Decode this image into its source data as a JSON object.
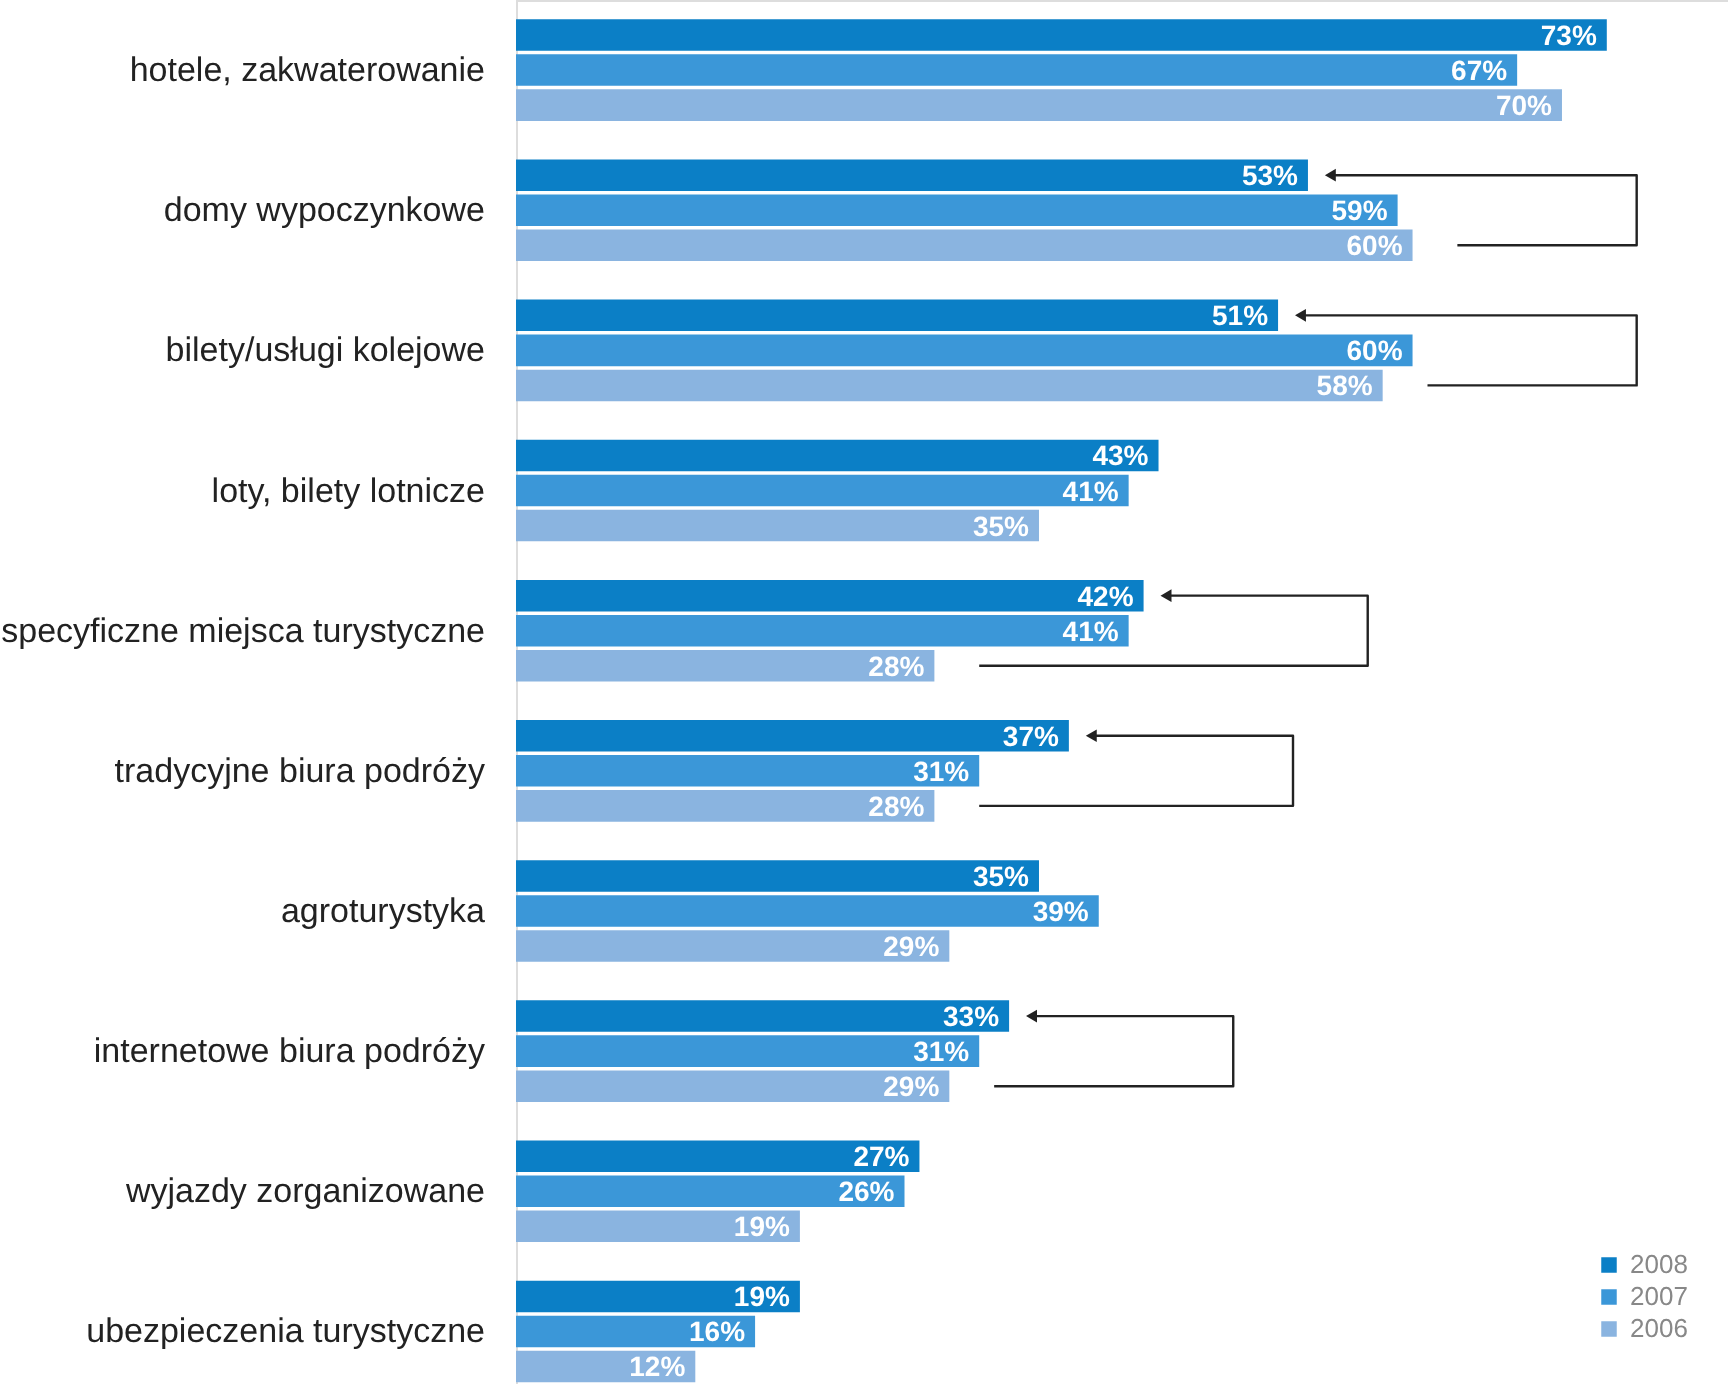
{
  "chart_data": {
    "type": "bar",
    "orientation": "horizontal",
    "categories": [
      "hotele, zakwaterowanie",
      "domy wypoczynkowe",
      "bilety/usługi kolejowe",
      "loty, bilety lotnicze",
      "specyficzne miejsca turystyczne",
      "tradycyjne biura podróży",
      "agroturystyka",
      "internetowe biura podróży",
      "wyjazdy zorganizowane",
      "ubezpieczenia turystyczne"
    ],
    "series": [
      {
        "name": "2008",
        "color": "#0b7fc6",
        "values": [
          73,
          53,
          51,
          43,
          42,
          37,
          35,
          33,
          27,
          19
        ],
        "value_labels": [
          "73%",
          "53%",
          "51%",
          "43%",
          "42%",
          "37%",
          "35%",
          "33%",
          "27%",
          "19%"
        ]
      },
      {
        "name": "2007",
        "color": "#3b97d8",
        "values": [
          67,
          59,
          60,
          41,
          41,
          31,
          39,
          31,
          26,
          16
        ],
        "value_labels": [
          "67%",
          "59%",
          "60%",
          "41%",
          "41%",
          "31%",
          "39%",
          "31%",
          "26%",
          "16%"
        ]
      },
      {
        "name": "2006",
        "color": "#8ab4e0",
        "values": [
          70,
          60,
          58,
          35,
          28,
          28,
          29,
          29,
          19,
          12
        ],
        "value_labels": [
          "70%",
          "60%",
          "58%",
          "35%",
          "28%",
          "28%",
          "29%",
          "29%",
          "19%",
          "12%"
        ]
      }
    ],
    "legend": "bottom right",
    "grid": false,
    "tick_labels": "y"
  }
}
